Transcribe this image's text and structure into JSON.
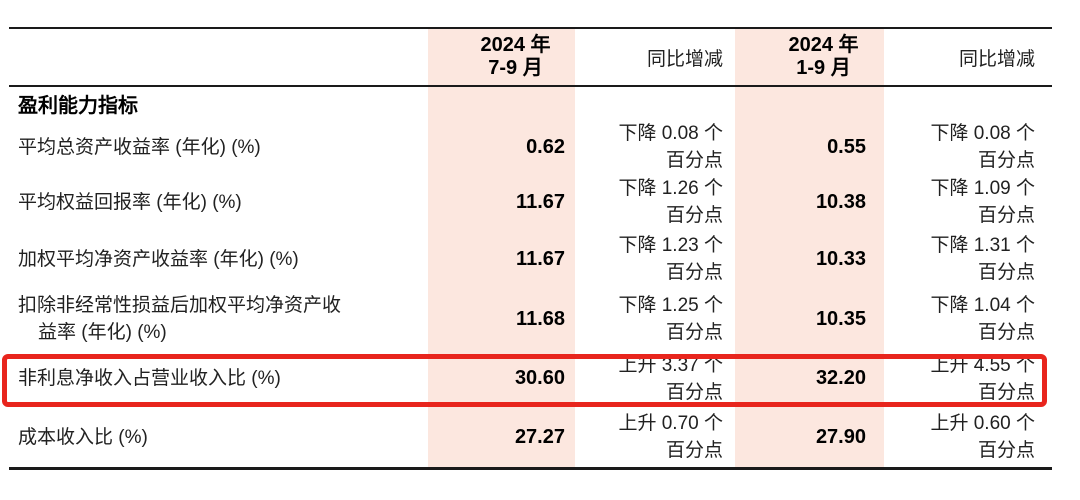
{
  "colors": {
    "highlight_column_bg": "#fce7df",
    "annotation_red": "#e8251d",
    "rule_black": "#1a1a1a"
  },
  "table": {
    "header": {
      "q3_period": [
        "2024 年",
        "7-9 月"
      ],
      "q3_yoy": "同比增减",
      "ytd_period": [
        "2024 年",
        "1-9 月"
      ],
      "ytd_yoy": "同比增减"
    },
    "section_title": "盈利能力指标",
    "rows": [
      {
        "label": [
          "平均总资产收益率 (年化) (%)"
        ],
        "q3": "0.62",
        "q3_yoy": [
          "下降 0.08 个",
          "百分点"
        ],
        "ytd": "0.55",
        "ytd_yoy": [
          "下降 0.08 个",
          "百分点"
        ]
      },
      {
        "label": [
          "平均权益回报率 (年化) (%)"
        ],
        "q3": "11.67",
        "q3_yoy": [
          "下降 1.26 个",
          "百分点"
        ],
        "ytd": "10.38",
        "ytd_yoy": [
          "下降 1.09 个",
          "百分点"
        ]
      },
      {
        "label": [
          "加权平均净资产收益率 (年化) (%)"
        ],
        "q3": "11.67",
        "q3_yoy": [
          "下降 1.23 个",
          "百分点"
        ],
        "ytd": "10.33",
        "ytd_yoy": [
          "下降 1.31 个",
          "百分点"
        ]
      },
      {
        "label": [
          "扣除非经常性损益后加权平均净资产收",
          "益率 (年化) (%)"
        ],
        "q3": "11.68",
        "q3_yoy": [
          "下降 1.25 个",
          "百分点"
        ],
        "ytd": "10.35",
        "ytd_yoy": [
          "下降 1.04 个",
          "百分点"
        ]
      },
      {
        "label": [
          "非利息净收入占营业收入比 (%)"
        ],
        "q3": "30.60",
        "q3_yoy": [
          "上升 3.37 个",
          "百分点"
        ],
        "ytd": "32.20",
        "ytd_yoy": [
          "上升 4.55 个",
          "百分点"
        ],
        "highlighted": true
      },
      {
        "label": [
          "成本收入比 (%)"
        ],
        "q3": "27.27",
        "q3_yoy": [
          "上升 0.70 个",
          "百分点"
        ],
        "ytd": "27.90",
        "ytd_yoy": [
          "上升 0.60 个",
          "百分点"
        ]
      }
    ]
  }
}
